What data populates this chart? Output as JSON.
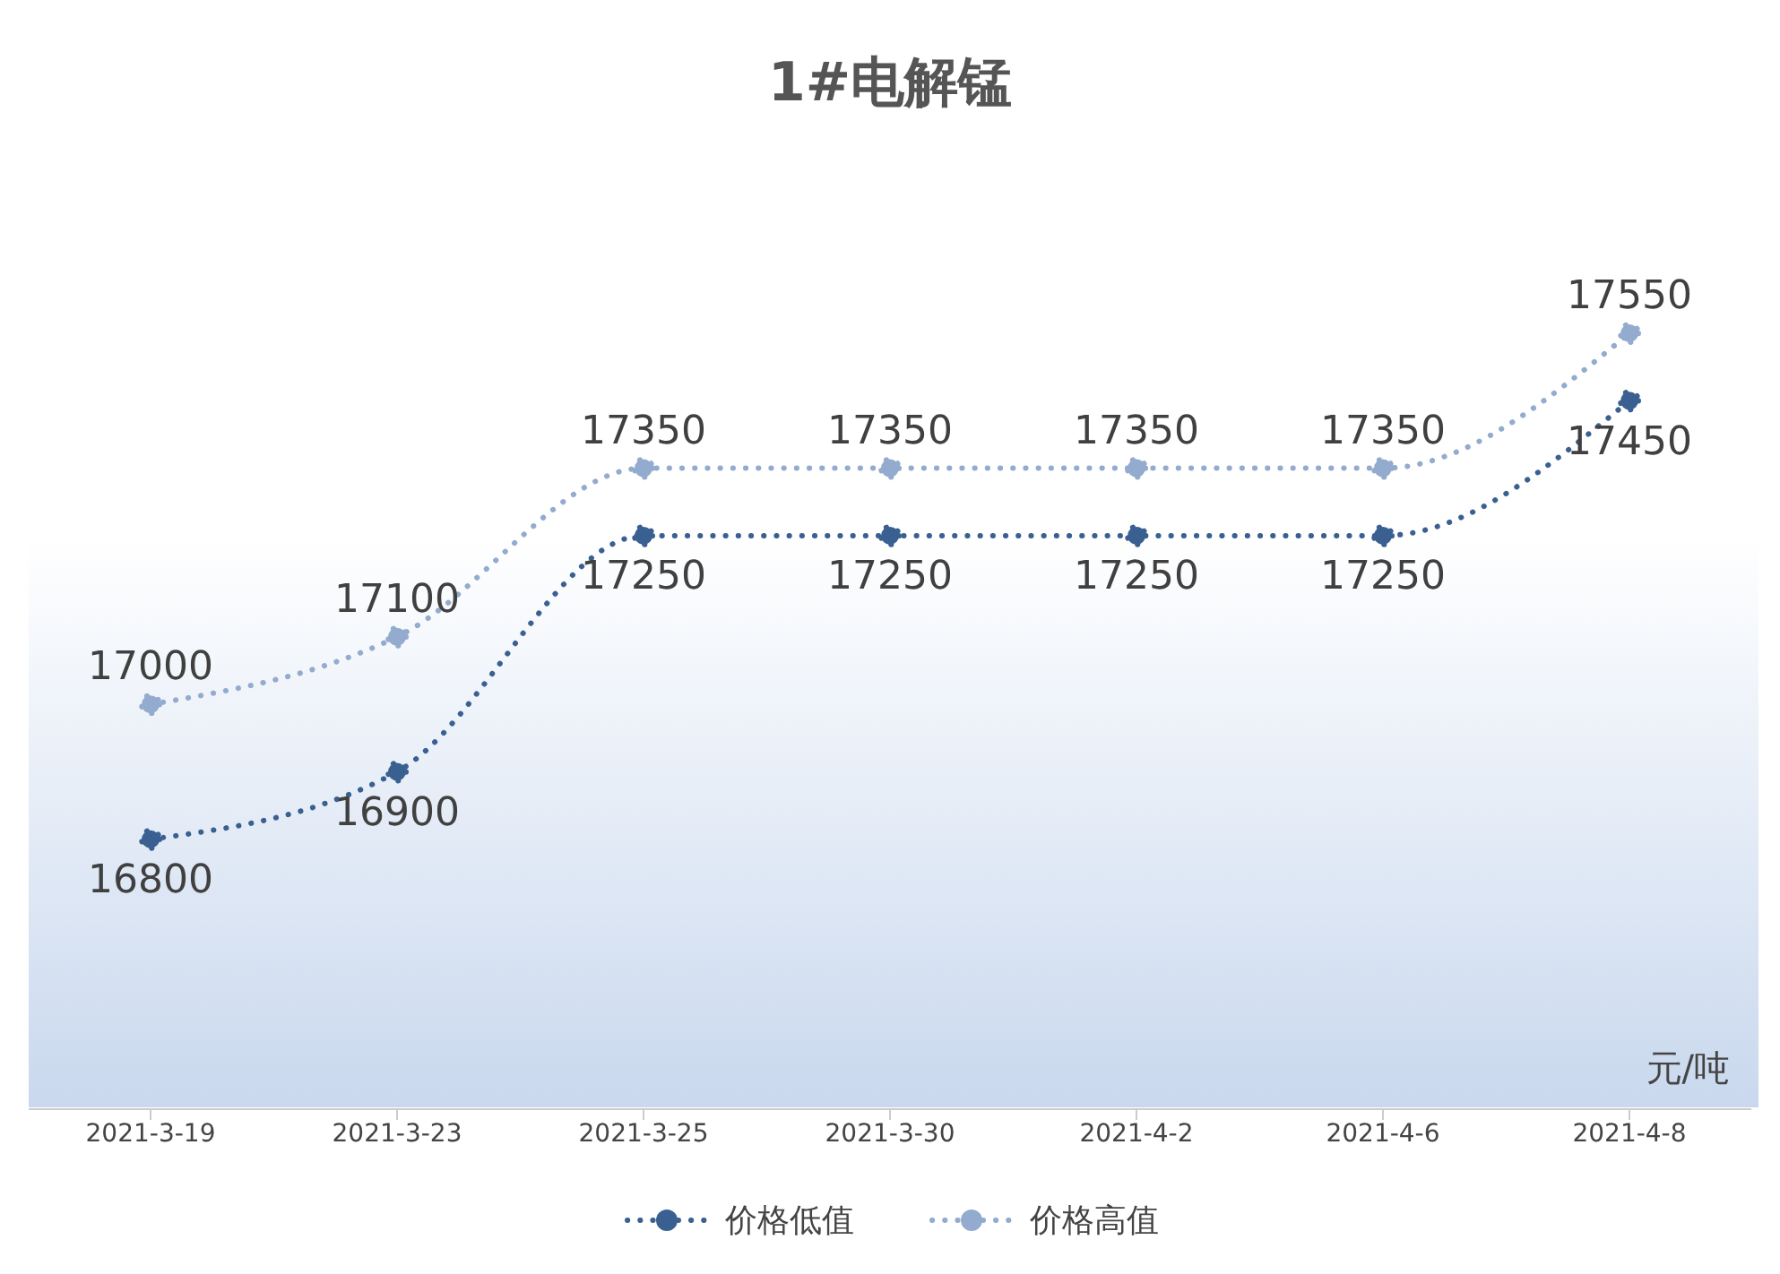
{
  "chart_data": {
    "type": "line",
    "title": "1#电解锰",
    "categories": [
      "2021-3-19",
      "2021-3-23",
      "2021-3-25",
      "2021-3-30",
      "2021-4-2",
      "2021-4-6",
      "2021-4-8"
    ],
    "series": [
      {
        "name": "价格低值",
        "color": "#3a6091",
        "values": [
          16800,
          16900,
          17250,
          17250,
          17250,
          17250,
          17450
        ]
      },
      {
        "name": "价格高值",
        "color": "#93abce",
        "values": [
          17000,
          17100,
          17350,
          17350,
          17350,
          17350,
          17550
        ]
      }
    ],
    "annotations": [
      "元/吨"
    ],
    "data_labels": true,
    "legend": "bottom",
    "grid": false,
    "marker": "circle",
    "line_style": "dotted"
  }
}
